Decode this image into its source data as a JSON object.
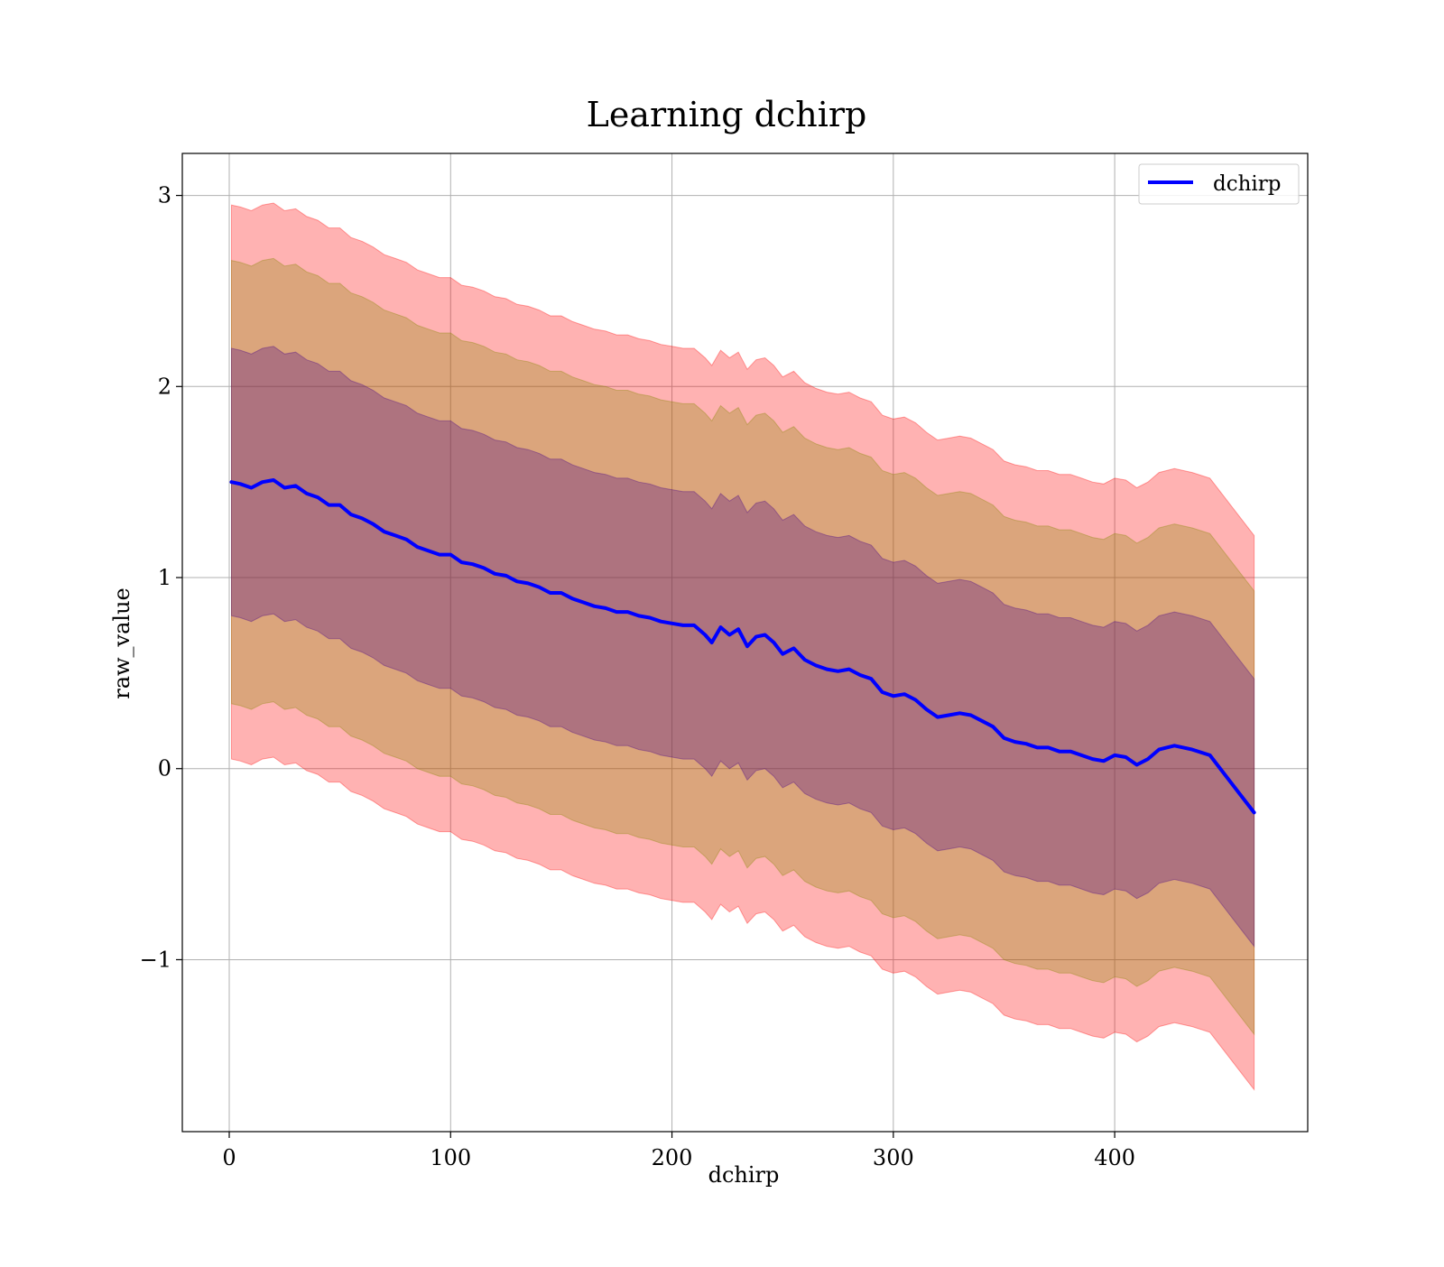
{
  "chart_data": {
    "type": "line",
    "title": "Learning dchirp",
    "xlabel": "dchirp",
    "ylabel": "raw_value",
    "xlim": [
      -21.2,
      487.2
    ],
    "ylim": [
      -1.9,
      3.22
    ],
    "x_ticks": [
      0,
      100,
      200,
      300,
      400
    ],
    "x_tick_labels": [
      "0",
      "100",
      "200",
      "300",
      "400"
    ],
    "y_ticks": [
      -1,
      0,
      1,
      2,
      3
    ],
    "y_tick_labels": [
      "−1",
      "0",
      "1",
      "2",
      "3"
    ],
    "grid": true,
    "legend": {
      "location": "upper right",
      "entries": [
        "dchirp"
      ]
    },
    "series": [
      {
        "name": "dchirp",
        "color": "#0000ff",
        "x": [
          1,
          5,
          10,
          15,
          20,
          25,
          30,
          35,
          40,
          45,
          50,
          55,
          60,
          65,
          70,
          75,
          80,
          85,
          90,
          95,
          100,
          105,
          110,
          115,
          120,
          125,
          130,
          135,
          140,
          145,
          150,
          155,
          160,
          165,
          170,
          175,
          180,
          185,
          190,
          195,
          200,
          205,
          210,
          215,
          218,
          222,
          226,
          230,
          234,
          238,
          242,
          246,
          250,
          255,
          260,
          265,
          270,
          275,
          280,
          285,
          290,
          295,
          300,
          305,
          310,
          315,
          320,
          325,
          330,
          335,
          340,
          345,
          350,
          355,
          360,
          365,
          370,
          375,
          380,
          385,
          390,
          395,
          400,
          405,
          410,
          415,
          420,
          427,
          435,
          443,
          453,
          463
        ],
        "y": [
          1.5,
          1.49,
          1.47,
          1.5,
          1.51,
          1.47,
          1.48,
          1.44,
          1.42,
          1.38,
          1.38,
          1.33,
          1.31,
          1.28,
          1.24,
          1.22,
          1.2,
          1.16,
          1.14,
          1.12,
          1.12,
          1.08,
          1.07,
          1.05,
          1.02,
          1.01,
          0.98,
          0.97,
          0.95,
          0.92,
          0.92,
          0.89,
          0.87,
          0.85,
          0.84,
          0.82,
          0.82,
          0.8,
          0.79,
          0.77,
          0.76,
          0.75,
          0.75,
          0.7,
          0.66,
          0.74,
          0.7,
          0.73,
          0.64,
          0.69,
          0.7,
          0.66,
          0.6,
          0.63,
          0.57,
          0.54,
          0.52,
          0.51,
          0.52,
          0.49,
          0.47,
          0.4,
          0.38,
          0.39,
          0.36,
          0.31,
          0.27,
          0.28,
          0.29,
          0.28,
          0.25,
          0.22,
          0.16,
          0.14,
          0.13,
          0.11,
          0.11,
          0.09,
          0.09,
          0.07,
          0.05,
          0.04,
          0.07,
          0.06,
          0.02,
          0.05,
          0.1,
          0.12,
          0.1,
          0.07,
          -0.08,
          -0.23
        ]
      }
    ],
    "bands": [
      {
        "color": "#ff0000",
        "fill_opacity": 0.3,
        "half_width": 1.45
      },
      {
        "color": "#888800",
        "fill_opacity": 0.3,
        "half_width": 1.16
      },
      {
        "color": "#440088",
        "fill_opacity": 0.3,
        "half_width": 0.7
      }
    ]
  }
}
